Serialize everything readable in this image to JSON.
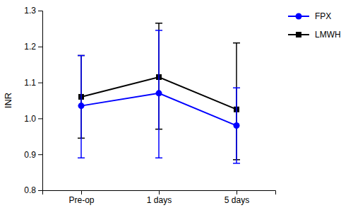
{
  "chart_data": {
    "type": "line",
    "ylabel": "INR",
    "categories": [
      "Pre-op",
      "1 days",
      "5 days"
    ],
    "series": [
      {
        "name": "FPX",
        "color": "#0000FF",
        "marker": "circle",
        "values": [
          1.035,
          1.07,
          0.98
        ],
        "error_low": [
          0.145,
          0.18,
          0.105
        ],
        "error_high": [
          0.14,
          0.175,
          0.105
        ]
      },
      {
        "name": "LMWH",
        "color": "#000000",
        "marker": "square",
        "values": [
          1.06,
          1.115,
          1.025
        ],
        "error_low": [
          0.115,
          0.145,
          0.14
        ],
        "error_high": [
          0.115,
          0.15,
          0.185
        ]
      }
    ],
    "ylim": [
      0.8,
      1.3
    ],
    "yticks": [
      0.8,
      0.9,
      {
        "value": 1.0,
        "label": "1.0"
      },
      1.1,
      1.2,
      1.3
    ],
    "grid": false,
    "legend": "right"
  }
}
